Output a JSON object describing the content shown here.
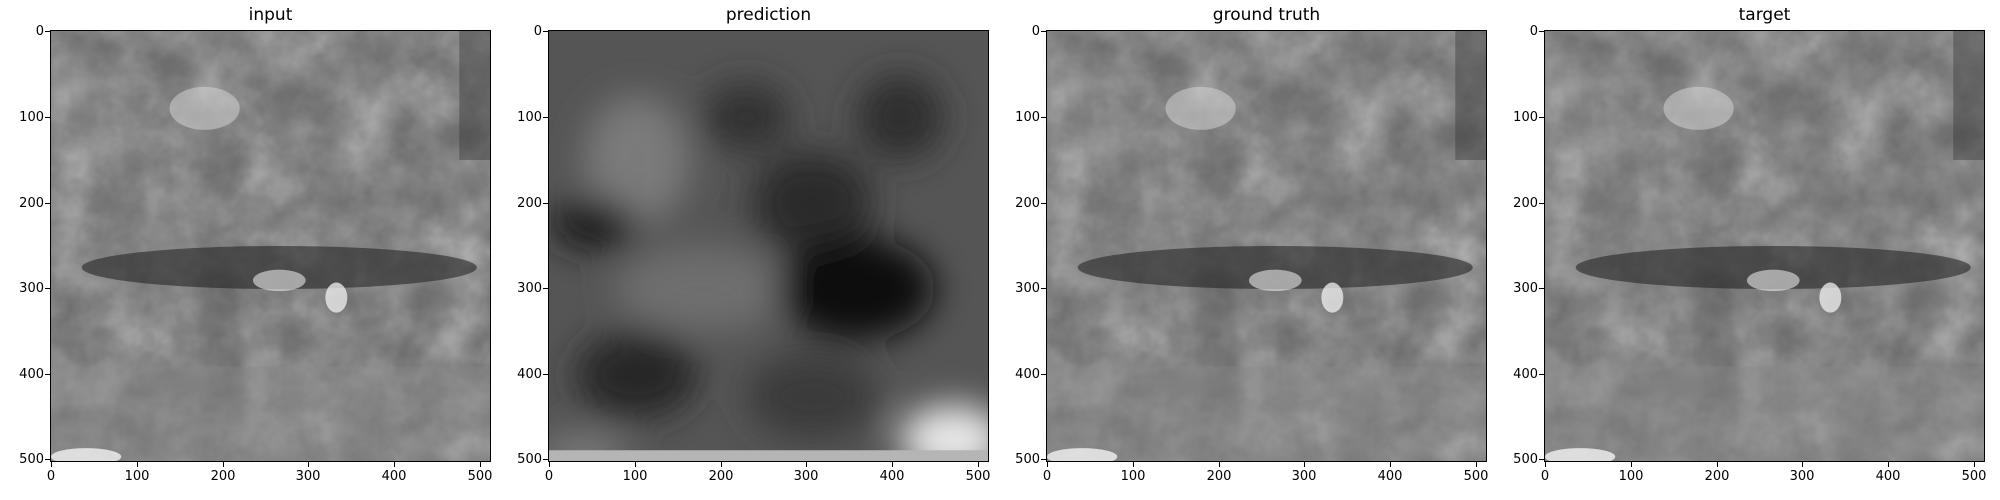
{
  "panels": [
    {
      "title": "input",
      "kind": "input"
    },
    {
      "title": "prediction",
      "kind": "prediction"
    },
    {
      "title": "ground truth",
      "kind": "ground_truth"
    },
    {
      "title": "target",
      "kind": "target"
    }
  ],
  "axes": {
    "x_ticks": [
      "0",
      "100",
      "200",
      "300",
      "400",
      "500"
    ],
    "y_ticks": [
      "0",
      "100",
      "200",
      "300",
      "400",
      "500"
    ],
    "range": [
      0,
      512
    ]
  }
}
